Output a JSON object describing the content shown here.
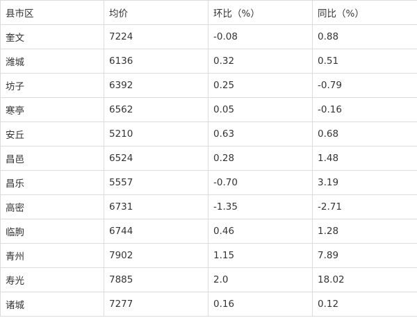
{
  "table": {
    "headers": [
      "县市区",
      "均价",
      "环比（%）",
      "同比（%）"
    ],
    "rows": [
      [
        "奎文",
        "7224",
        "-0.08",
        "0.88"
      ],
      [
        "潍城",
        "6136",
        "0.32",
        "0.51"
      ],
      [
        "坊子",
        "6392",
        "0.25",
        "-0.79"
      ],
      [
        "寒亭",
        "6562",
        "0.05",
        "-0.16"
      ],
      [
        "安丘",
        "5210",
        "0.63",
        "0.68"
      ],
      [
        "昌邑",
        "6524",
        "0.28",
        "1.48"
      ],
      [
        "昌乐",
        "5557",
        "-0.70",
        "3.19"
      ],
      [
        "高密",
        "6731",
        "-1.35",
        "-2.71"
      ],
      [
        "临朐",
        "6744",
        "0.46",
        "1.28"
      ],
      [
        "青州",
        "7902",
        "1.15",
        "7.89"
      ],
      [
        "寿光",
        "7885",
        "2.0",
        "18.02"
      ],
      [
        "诸城",
        "7277",
        "0.16",
        "0.12"
      ]
    ]
  }
}
